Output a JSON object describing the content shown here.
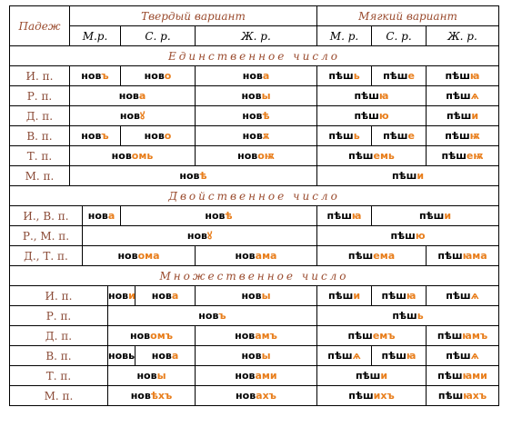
{
  "header": {
    "case_label": "Падеж",
    "hard_variant": "Твердый вариант",
    "soft_variant": "Мягкий вариант",
    "hard_cols": [
      "М.р.",
      "С. р.",
      "Ж. р."
    ],
    "soft_cols": [
      "М. р.",
      "С. р.",
      "Ж. р."
    ]
  },
  "sections": {
    "singular": "Единственное число",
    "dual": "Двойственное число",
    "plural": "Множественное число"
  },
  "singular": {
    "nom": {
      "case": "И. п.",
      "h_m": [
        "нов",
        "ъ"
      ],
      "h_n": [
        "нов",
        "о"
      ],
      "h_f": [
        "нов",
        "а"
      ],
      "s_m": [
        "пѣш",
        "ь"
      ],
      "s_n": [
        "пѣш",
        "е"
      ],
      "s_f": [
        "пѣш",
        "ꙗ"
      ]
    },
    "gen": {
      "case": "Р. п.",
      "h_mn": [
        "нов",
        "а"
      ],
      "h_f": [
        "нов",
        "ы"
      ],
      "s_mn": [
        "пѣш",
        "ꙗ"
      ],
      "s_f": [
        "пѣш",
        "ѧ"
      ]
    },
    "dat": {
      "case": "Д. п.",
      "h_mn": [
        "нов",
        "ꙋ"
      ],
      "h_f": [
        "нов",
        "ѣ"
      ],
      "s_mn": [
        "пѣш",
        "ю"
      ],
      "s_f": [
        "пѣш",
        "и"
      ]
    },
    "acc": {
      "case": "В. п.",
      "h_m": [
        "нов",
        "ъ"
      ],
      "h_n": [
        "нов",
        "о"
      ],
      "h_f": [
        "нов",
        "ѫ"
      ],
      "s_m": [
        "пѣш",
        "ь"
      ],
      "s_n": [
        "пѣш",
        "е"
      ],
      "s_f": [
        "пѣш",
        "ѭ"
      ]
    },
    "ins": {
      "case": "Т. п.",
      "h_mn": [
        "нов",
        "омь"
      ],
      "h_f": [
        "нов",
        "оѭ"
      ],
      "s_mn": [
        "пѣш",
        "емь"
      ],
      "s_f": [
        "пѣш",
        "еѭ"
      ]
    },
    "loc": {
      "case": "М. п.",
      "h": [
        "нов",
        "ѣ"
      ],
      "s": [
        "пѣш",
        "и"
      ]
    }
  },
  "dual": {
    "nom": {
      "case": "И., В. п.",
      "h_m": [
        "нов",
        "а"
      ],
      "h_nf": [
        "нов",
        "ѣ"
      ],
      "s_m": [
        "пѣш",
        "ꙗ"
      ],
      "s_nf": [
        "пѣш",
        "и"
      ]
    },
    "gen": {
      "case": "Р., М. п.",
      "h": [
        "нов",
        "ꙋ"
      ],
      "s": [
        "пѣш",
        "ю"
      ]
    },
    "dat": {
      "case": "Д., Т. п.",
      "h_mn": [
        "нов",
        "ома"
      ],
      "h_f": [
        "нов",
        "ама"
      ],
      "s_mn": [
        "пѣш",
        "ема"
      ],
      "s_f": [
        "пѣш",
        "ꙗма"
      ]
    }
  },
  "plural": {
    "nom": {
      "case": "И. п.",
      "h_m": [
        "нов",
        "и"
      ],
      "h_n": [
        "нов",
        "а"
      ],
      "h_f": [
        "нов",
        "ы"
      ],
      "s_m": [
        "пѣш",
        "и"
      ],
      "s_n": [
        "пѣш",
        "ꙗ"
      ],
      "s_f": [
        "пѣш",
        "ѧ"
      ]
    },
    "gen": {
      "case": "Р. п.",
      "h": [
        "нов",
        "ъ"
      ],
      "s": [
        "пѣш",
        "ь"
      ]
    },
    "dat": {
      "case": "Д. п.",
      "h_mn": [
        "нов",
        "омъ"
      ],
      "h_f": [
        "нов",
        "амъ"
      ],
      "s_mn": [
        "пѣш",
        "емъ"
      ],
      "s_f": [
        "пѣш",
        "ꙗмъ"
      ]
    },
    "acc": {
      "case": "В. п.",
      "h_m": [
        "новы",
        ""
      ],
      "h_n": [
        "нов",
        "а"
      ],
      "h_f": [
        "нов",
        "ы"
      ],
      "s_m": [
        "пѣш",
        "ѧ"
      ],
      "s_n": [
        "пѣш",
        "ꙗ"
      ],
      "s_f": [
        "пѣш",
        "ѧ"
      ]
    },
    "ins": {
      "case": "Т. п.",
      "h_mn": [
        "нов",
        "ы"
      ],
      "h_f": [
        "нов",
        "ами"
      ],
      "s_mn": [
        "пѣш",
        "и"
      ],
      "s_f": [
        "пѣш",
        "ꙗми"
      ]
    },
    "loc": {
      "case": "М. п.",
      "h_mn": [
        "нов",
        "ѣхъ"
      ],
      "h_f": [
        "нов",
        "ахъ"
      ],
      "s_mn": [
        "пѣш",
        "ихъ"
      ],
      "s_f": [
        "пѣш",
        "ꙗхъ"
      ]
    }
  }
}
